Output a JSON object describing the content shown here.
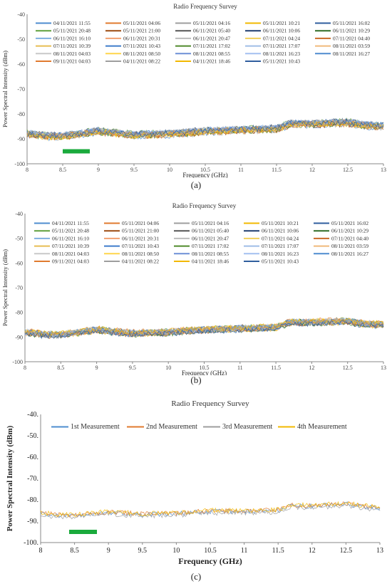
{
  "captions": [
    "(a)",
    "(b)",
    "(c)"
  ],
  "legend_colors": [
    "#4e8ccf",
    "#e07a2e",
    "#9e9e9e",
    "#f2b800",
    "#2f5e9e",
    "#5fa03c",
    "#9c4a10",
    "#555555",
    "#1f3c6e",
    "#2e6b25",
    "#7faee0",
    "#f2a071",
    "#bcbcbc",
    "#f2cf5a",
    "#c96a28",
    "#e7bd53",
    "#3f7ccb",
    "#4f8a2b",
    "#9fbee6",
    "#f0b97a",
    "#c8c8c8",
    "#ffd54a",
    "#6d8fd6",
    "#a3c0f0"
  ],
  "annotation_color": "#1aaa3c",
  "chart_data": [
    {
      "type": "line",
      "title": "Radio Frequency Survey",
      "xlabel": "Frequency (GHz)",
      "ylabel": "Power Spectral Intensity (dBm)",
      "xlim": [
        8,
        13
      ],
      "ylim": [
        -100,
        -40
      ],
      "x_ticks": [
        "8",
        "8.5",
        "9",
        "9.5",
        "10",
        "10.5",
        "11",
        "11.5",
        "12",
        "12.5",
        "13"
      ],
      "y_ticks": [
        "-40",
        "-50",
        "-60",
        "-70",
        "-80",
        "-90",
        "-100"
      ],
      "legend": "top, 5 columns",
      "grid": false,
      "series_names": [
        "04/11/2021 11:55",
        "05/11/2021 04:06",
        "05/11/2021 04:16",
        "05/11/2021 10:21",
        "05/11/2021 16:02",
        "05/11/2021 20:48",
        "05/11/2021 21:00",
        "06/11/2021 05:40",
        "06/11/2021 10:06",
        "06/11/2021 10:29",
        "06/11/2021 16:10",
        "06/11/2021 20:31",
        "06/11/2021 20:47",
        "07/11/2021 04:24",
        "07/11/2021 04:40",
        "07/11/2021 10:39",
        "07/11/2021 10:43",
        "07/11/2021 17:02",
        "07/11/2021 17:07",
        "08/11/2021 03:59",
        "08/11/2021 04:03",
        "08/11/2021 08:50",
        "08/11/2021 08:55",
        "08/11/2021 16:23",
        "08/11/2021 16:27",
        "09/11/2021 04:03",
        "04/11/2021 08:22",
        "04/11/2021 18:46",
        "05/11/2021 10:43"
      ],
      "baseline": {
        "x": [
          8,
          8.3,
          8.5,
          9.0,
          9.5,
          10.0,
          10.5,
          11.0,
          11.5,
          11.7,
          12.0,
          12.5,
          12.7,
          13.0
        ],
        "y": [
          -88,
          -89,
          -89,
          -87,
          -88.5,
          -88,
          -87,
          -86.5,
          -86,
          -84,
          -84,
          -83.5,
          -84.5,
          -85
        ]
      },
      "annotation_bar": {
        "x": [
          8.5,
          8.88
        ],
        "y": -95
      }
    },
    {
      "type": "line",
      "title": "Radio Frequency Survey",
      "xlabel": "Frequency (GHz)",
      "ylabel": "Power Spectral Intensity (dBm)",
      "xlim": [
        8,
        13
      ],
      "ylim": [
        -100,
        -40
      ],
      "x_ticks": [
        "8",
        "8.5",
        "9",
        "9.5",
        "10",
        "10.5",
        "11",
        "11.5",
        "12",
        "12.5",
        "13"
      ],
      "y_ticks": [
        "-40",
        "-50",
        "-60",
        "-70",
        "-80",
        "-90",
        "-100"
      ],
      "legend": "top, 5 columns",
      "grid": false,
      "series_names": [
        "04/11/2021 11:55",
        "05/11/2021 04:06",
        "05/11/2021 04:16",
        "05/11/2021 10:21",
        "05/11/2021 16:02",
        "05/11/2021 20:48",
        "05/11/2021 21:00",
        "06/11/2021 05:40",
        "06/11/2021 10:06",
        "06/11/2021 10:29",
        "06/11/2021 16:10",
        "06/11/2021 20:31",
        "06/11/2021 20:47",
        "07/11/2021 04:24",
        "07/11/2021 04:40",
        "07/11/2021 10:39",
        "07/11/2021 10:43",
        "07/11/2021 17:02",
        "07/11/2021 17:07",
        "08/11/2021 03:59",
        "08/11/2021 04:03",
        "08/11/2021 08:50",
        "08/11/2021 08:55",
        "08/11/2021 16:23",
        "08/11/2021 16:27",
        "09/11/2021 04:03",
        "04/11/2021 08:22",
        "04/11/2021 18:46",
        "05/11/2021 10:43"
      ],
      "baseline": {
        "x": [
          8,
          8.3,
          8.5,
          9.0,
          9.5,
          10.0,
          10.5,
          11.0,
          11.5,
          11.7,
          12.0,
          12.5,
          12.7,
          13.0
        ],
        "y": [
          -88,
          -89,
          -89,
          -87,
          -88.5,
          -88,
          -87,
          -86.5,
          -86,
          -84,
          -84,
          -83.5,
          -84.5,
          -85
        ]
      }
    },
    {
      "type": "line",
      "title": "Radio Frequency Survey",
      "xlabel": "Frequency (GHz)",
      "ylabel": "Power Spectral Intensity (dBm)",
      "xlim": [
        8,
        13
      ],
      "ylim": [
        -100,
        -40
      ],
      "x_ticks": [
        "8",
        "8.5",
        "9",
        "9.5",
        "10",
        "10.5",
        "11",
        "11.5",
        "12",
        "12.5",
        "13"
      ],
      "y_ticks": [
        "-40.",
        "-50.",
        "-60.",
        "-70.",
        "-80.",
        "-90.",
        "-100."
      ],
      "legend": "top, 1 row",
      "grid": false,
      "series_names": [
        "1st Measurement",
        "2nd Measurement",
        "3rd Measurement",
        "4th Measurement"
      ],
      "baseline": {
        "x": [
          8,
          8.3,
          8.5,
          9.0,
          9.5,
          10.0,
          10.5,
          11.0,
          11.5,
          11.7,
          12.0,
          12.5,
          12.7,
          13.0
        ],
        "y": [
          -86.5,
          -87.5,
          -87.5,
          -86,
          -87,
          -86.5,
          -85.5,
          -85.5,
          -85,
          -83,
          -83,
          -82,
          -83,
          -84
        ]
      },
      "annotation_bar": {
        "x": [
          8.42,
          8.83
        ],
        "y": -95
      }
    }
  ]
}
